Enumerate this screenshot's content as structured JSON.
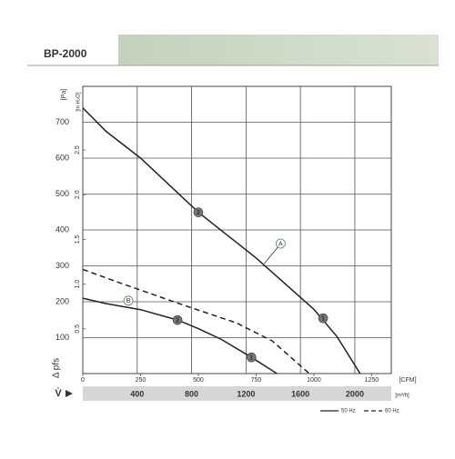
{
  "chart_data": {
    "type": "line",
    "title": "BP-2000",
    "ylabel": "[Pa]",
    "y2label": "[in H₂O]",
    "xlabel": "[CFM]",
    "x2label": "[m³/h]",
    "axis_symbols": {
      "y": "Δ pfs",
      "x": "V̇"
    },
    "xlim": [
      0,
      1335
    ],
    "xticks": [
      0,
      250,
      500,
      750,
      1000,
      1250
    ],
    "x2lim": [
      0,
      2268
    ],
    "x2ticks": [
      400,
      800,
      1200,
      1600,
      2000
    ],
    "ylim": [
      0,
      800
    ],
    "yticks": [
      100,
      200,
      300,
      400,
      500,
      600,
      700
    ],
    "y2lim": [
      0,
      3.212
    ],
    "y2ticks": [
      {
        "value": 0.5,
        "label": "0.5"
      },
      {
        "value": 1,
        "label": "1.0"
      },
      {
        "value": 1.5,
        "label": "1.5"
      },
      {
        "value": 2,
        "label": "2.0"
      },
      {
        "value": 2.5,
        "label": "2.5"
      }
    ],
    "grid": true,
    "series": [
      {
        "style": "solid",
        "color": "#222222",
        "x": [
          0,
          100,
          250,
          500,
          750,
          1000,
          1100,
          1200
        ],
        "values": [
          740,
          675,
          600,
          449,
          322,
          179,
          103,
          0
        ]
      },
      {
        "style": "solid",
        "color": "#222222",
        "x": [
          0,
          100,
          250,
          410,
          500,
          600,
          730,
          840
        ],
        "values": [
          210,
          195,
          178,
          149,
          125,
          95,
          45,
          0
        ]
      },
      {
        "style": "dashed",
        "color": "#222222",
        "x": [
          0,
          150,
          430,
          665,
          820,
          980
        ],
        "values": [
          290,
          255,
          192,
          141,
          91,
          0
        ]
      }
    ],
    "annotations": [
      {
        "text": "2",
        "kind": "number",
        "x": 500,
        "y": 449
      },
      {
        "text": "1",
        "kind": "number",
        "x": 1040,
        "y": 154
      },
      {
        "text": "2",
        "kind": "number",
        "x": 410,
        "y": 149
      },
      {
        "text": "1",
        "kind": "number",
        "x": 730,
        "y": 45
      },
      {
        "text": "A",
        "kind": "letter",
        "x": 856,
        "y": 362
      },
      {
        "text": "B",
        "kind": "letter",
        "x": 197,
        "y": 203
      }
    ],
    "legend": [
      {
        "label": "50 Hz",
        "style": "solid"
      },
      {
        "label": "60 Hz",
        "style": "dashed"
      }
    ]
  }
}
